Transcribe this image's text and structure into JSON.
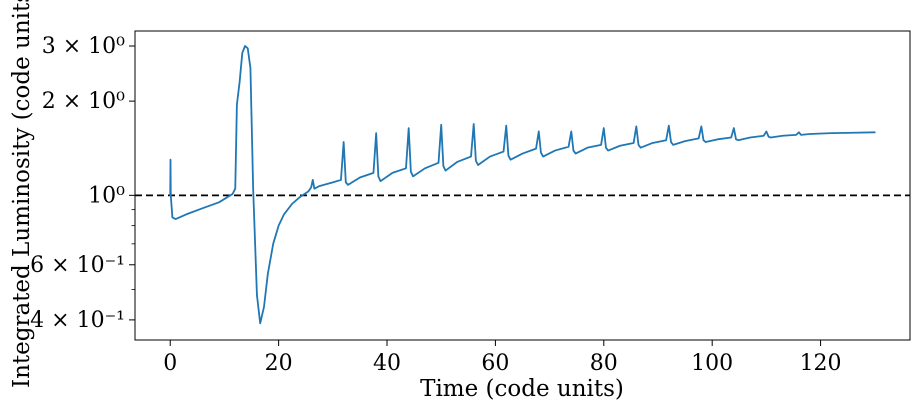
{
  "chart_data": {
    "type": "line",
    "title": "",
    "xlabel": "Time (code units)",
    "ylabel": "Integrated Luminosity (code units)",
    "xlim": [
      -6.5,
      136.5
    ],
    "ylim": [
      0.345,
      3.35
    ],
    "yscale": "log",
    "grid": false,
    "legend": "none",
    "x_ticks": [
      {
        "value": 0,
        "label": "0"
      },
      {
        "value": 20,
        "label": "20"
      },
      {
        "value": 40,
        "label": "40"
      },
      {
        "value": 60,
        "label": "60"
      },
      {
        "value": 80,
        "label": "80"
      },
      {
        "value": 100,
        "label": "100"
      },
      {
        "value": 120,
        "label": "120"
      }
    ],
    "y_ticks": [
      {
        "value": 0.4,
        "label": "4 × 10⁻¹"
      },
      {
        "value": 0.6,
        "label": "6 × 10⁻¹"
      },
      {
        "value": 1,
        "label": "10⁰"
      },
      {
        "value": 2,
        "label": "2 × 10⁰"
      },
      {
        "value": 3,
        "label": "3 × 10⁰"
      }
    ],
    "y_minor_ticks": [
      0.5,
      0.7,
      0.8,
      0.9
    ],
    "reference_line": {
      "y": 1.0,
      "style": "dashed",
      "color": "#000000"
    },
    "series": [
      {
        "name": "Integrated Luminosity",
        "color": "#1f77b4",
        "points": [
          [
            0.0,
            1.0
          ],
          [
            0.05,
            1.3
          ],
          [
            0.1,
            1.0
          ],
          [
            0.4,
            0.85
          ],
          [
            1.0,
            0.84
          ],
          [
            3.0,
            0.87
          ],
          [
            6.0,
            0.91
          ],
          [
            9.0,
            0.95
          ],
          [
            11.5,
            1.01
          ],
          [
            12.0,
            1.05
          ],
          [
            12.3,
            1.95
          ],
          [
            12.8,
            2.3
          ],
          [
            13.3,
            2.85
          ],
          [
            13.8,
            3.0
          ],
          [
            14.3,
            2.95
          ],
          [
            14.8,
            2.55
          ],
          [
            15.3,
            1.05
          ],
          [
            16.0,
            0.48
          ],
          [
            16.6,
            0.39
          ],
          [
            17.3,
            0.44
          ],
          [
            18.0,
            0.56
          ],
          [
            19.0,
            0.7
          ],
          [
            20.0,
            0.8
          ],
          [
            21.0,
            0.87
          ],
          [
            22.5,
            0.94
          ],
          [
            24.0,
            0.99
          ],
          [
            25.5,
            1.03
          ],
          [
            26.0,
            1.06
          ],
          [
            26.3,
            1.12
          ],
          [
            26.6,
            1.05
          ],
          [
            27.5,
            1.07
          ],
          [
            30.0,
            1.1
          ],
          [
            31.5,
            1.12
          ],
          [
            32.0,
            1.48
          ],
          [
            32.4,
            1.1
          ],
          [
            32.8,
            1.08
          ],
          [
            35.0,
            1.14
          ],
          [
            37.5,
            1.18
          ],
          [
            38.0,
            1.58
          ],
          [
            38.4,
            1.15
          ],
          [
            38.8,
            1.11
          ],
          [
            41.0,
            1.18
          ],
          [
            43.5,
            1.22
          ],
          [
            44.0,
            1.64
          ],
          [
            44.4,
            1.19
          ],
          [
            44.8,
            1.15
          ],
          [
            47.0,
            1.22
          ],
          [
            49.5,
            1.27
          ],
          [
            50.0,
            1.68
          ],
          [
            50.4,
            1.24
          ],
          [
            50.8,
            1.2
          ],
          [
            53.0,
            1.28
          ],
          [
            55.5,
            1.33
          ],
          [
            56.0,
            1.69
          ],
          [
            56.4,
            1.29
          ],
          [
            56.8,
            1.25
          ],
          [
            59.0,
            1.33
          ],
          [
            61.5,
            1.38
          ],
          [
            62.0,
            1.67
          ],
          [
            62.4,
            1.34
          ],
          [
            62.8,
            1.3
          ],
          [
            65.0,
            1.36
          ],
          [
            67.5,
            1.41
          ],
          [
            68.0,
            1.6
          ],
          [
            68.4,
            1.37
          ],
          [
            68.8,
            1.33
          ],
          [
            71.0,
            1.39
          ],
          [
            73.5,
            1.43
          ],
          [
            74.0,
            1.6
          ],
          [
            74.4,
            1.39
          ],
          [
            74.8,
            1.36
          ],
          [
            77.0,
            1.42
          ],
          [
            79.5,
            1.45
          ],
          [
            80.0,
            1.64
          ],
          [
            80.4,
            1.42
          ],
          [
            80.8,
            1.39
          ],
          [
            83.0,
            1.44
          ],
          [
            85.5,
            1.47
          ],
          [
            86.0,
            1.66
          ],
          [
            86.4,
            1.45
          ],
          [
            86.8,
            1.42
          ],
          [
            89.0,
            1.47
          ],
          [
            91.5,
            1.5
          ],
          [
            92.0,
            1.67
          ],
          [
            92.4,
            1.48
          ],
          [
            92.8,
            1.45
          ],
          [
            95.0,
            1.49
          ],
          [
            97.5,
            1.52
          ],
          [
            98.0,
            1.66
          ],
          [
            98.4,
            1.5
          ],
          [
            98.8,
            1.48
          ],
          [
            101.0,
            1.51
          ],
          [
            103.5,
            1.53
          ],
          [
            104.0,
            1.64
          ],
          [
            104.4,
            1.51
          ],
          [
            104.8,
            1.5
          ],
          [
            107.0,
            1.53
          ],
          [
            109.5,
            1.55
          ],
          [
            110.0,
            1.6
          ],
          [
            110.4,
            1.54
          ],
          [
            110.8,
            1.53
          ],
          [
            113.0,
            1.55
          ],
          [
            115.5,
            1.56
          ],
          [
            116.0,
            1.59
          ],
          [
            116.4,
            1.56
          ],
          [
            118.0,
            1.57
          ],
          [
            122.0,
            1.58
          ],
          [
            126.0,
            1.585
          ],
          [
            130.0,
            1.59
          ]
        ]
      }
    ]
  }
}
